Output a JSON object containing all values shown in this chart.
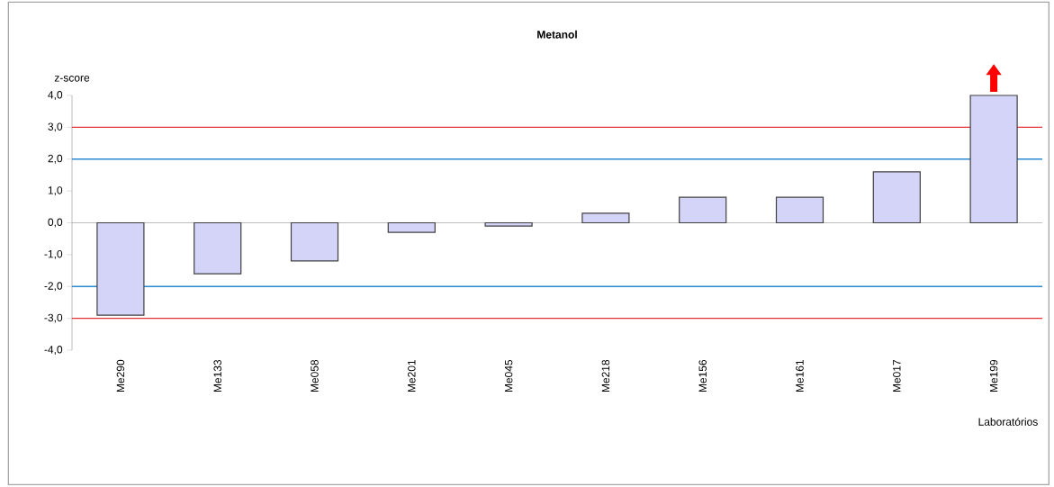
{
  "chart_data": {
    "type": "bar",
    "title": "Metanol",
    "ylabel": "z-score",
    "xlabel": "Laboratórios",
    "categories": [
      "Me290",
      "Me133",
      "Me058",
      "Me201",
      "Me045",
      "Me218",
      "Me156",
      "Me161",
      "Me017",
      "Me199"
    ],
    "values": [
      -2.9,
      -1.6,
      -1.2,
      -0.3,
      -0.1,
      0.3,
      0.8,
      0.8,
      1.6,
      4.0
    ],
    "color": "#d4d4f8",
    "ylim": [
      -4,
      4
    ],
    "yticks": [
      {
        "value": -4,
        "label": "-4,0"
      },
      {
        "value": -3,
        "label": "-3,0"
      },
      {
        "value": -2,
        "label": "-2,0"
      },
      {
        "value": -1,
        "label": "-1,0"
      },
      {
        "value": 0,
        "label": "0,0"
      },
      {
        "value": 1,
        "label": "1,0"
      },
      {
        "value": 2,
        "label": "2,0"
      },
      {
        "value": 3,
        "label": "3,0"
      },
      {
        "value": 4,
        "label": "4,0"
      }
    ],
    "ref_lines": [
      {
        "axis": "y",
        "value": 3,
        "color": "#e8303a"
      },
      {
        "axis": "y",
        "value": 2,
        "color": "#2a8ad0"
      },
      {
        "axis": "y",
        "value": -2,
        "color": "#2a8ad0"
      },
      {
        "axis": "y",
        "value": -3,
        "color": "#e8303a"
      }
    ]
  }
}
